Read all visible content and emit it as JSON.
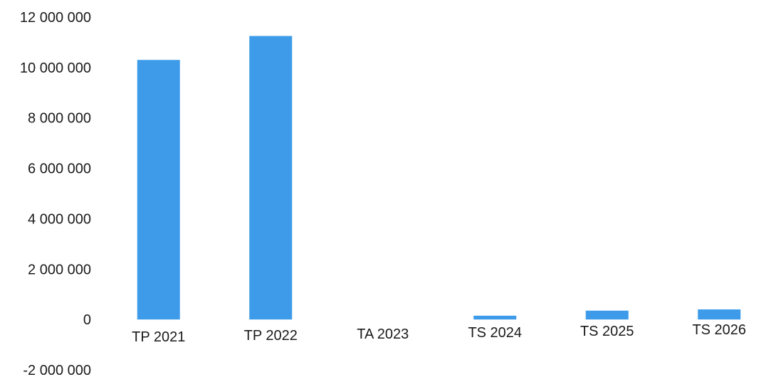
{
  "chart_data": {
    "type": "bar",
    "title": "",
    "xlabel": "",
    "ylabel": "",
    "categories": [
      "TP 2021",
      "TP 2022",
      "TA 2023",
      "TS 2024",
      "TS 2025",
      "TS 2026"
    ],
    "values": [
      10300000,
      11250000,
      0,
      150000,
      350000,
      400000
    ],
    "ylim": [
      -2000000,
      12000000
    ],
    "yticks": [
      12000000,
      10000000,
      8000000,
      6000000,
      4000000,
      2000000,
      0,
      -2000000
    ],
    "ytick_labels": [
      "12 000 000",
      "10 000 000",
      "8 000 000",
      "6 000 000",
      "4 000 000",
      "2 000 000",
      "0",
      "-2 000 000"
    ],
    "bar_color": "#3d9be9",
    "grid": false,
    "legend": "none"
  }
}
